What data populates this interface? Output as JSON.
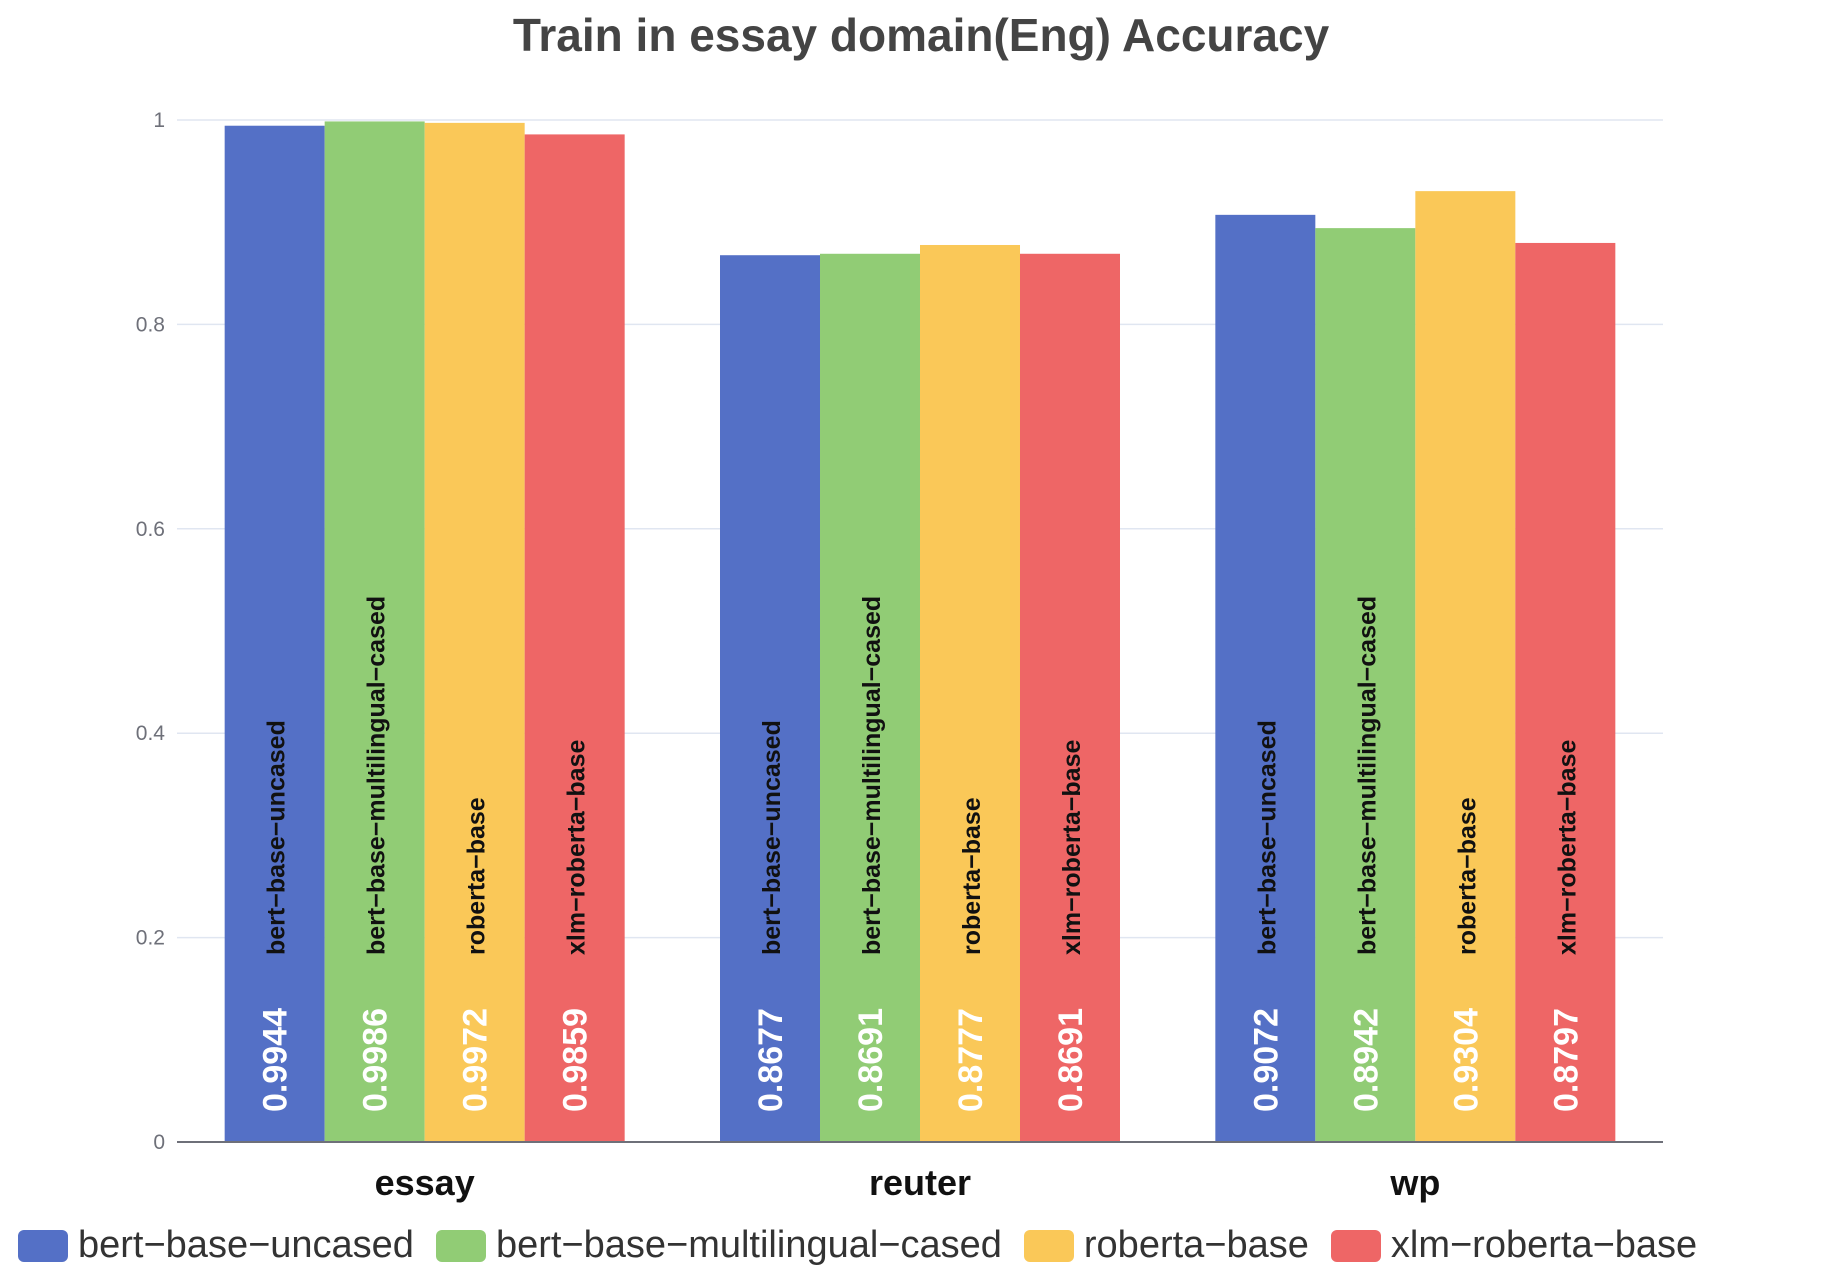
{
  "chart_data": {
    "type": "bar",
    "title": "Train in essay domain(Eng) Accuracy",
    "xlabel": "",
    "ylabel": "",
    "ylim": [
      0,
      1
    ],
    "yticks": [
      "0",
      "0.2",
      "0.4",
      "0.6",
      "0.8",
      "1"
    ],
    "grid": true,
    "legend_position": "bottom",
    "categories": [
      "essay",
      "reuter",
      "wp"
    ],
    "series": [
      {
        "name": "bert-base-uncased",
        "color": "#5470c6",
        "values": [
          0.9944,
          0.8677,
          0.9072
        ],
        "labels": [
          "0.9944",
          "0.8677",
          "0.9072"
        ]
      },
      {
        "name": "bert-base-multilingual-cased",
        "color": "#91cc75",
        "values": [
          0.9986,
          0.8691,
          0.8942
        ],
        "labels": [
          "0.9986",
          "0.8691",
          "0.8942"
        ]
      },
      {
        "name": "roberta-base",
        "color": "#fac858",
        "values": [
          0.9972,
          0.8777,
          0.9304
        ],
        "labels": [
          "0.9972",
          "0.8777",
          "0.9304"
        ]
      },
      {
        "name": "xlm-roberta-base",
        "color": "#ee6666",
        "values": [
          0.9859,
          0.8691,
          0.8797
        ],
        "labels": [
          "0.9859",
          "0.8691",
          "0.8797"
        ]
      }
    ],
    "legend": [
      "bert−base−uncased",
      "bert−base−multilingual−cased",
      "roberta−base",
      "xlm−roberta−base"
    ],
    "bar_name_labels": [
      "bert−base−uncased",
      "bert−base−multilingual−cased",
      "roberta−base",
      "xlm−roberta−base"
    ]
  }
}
